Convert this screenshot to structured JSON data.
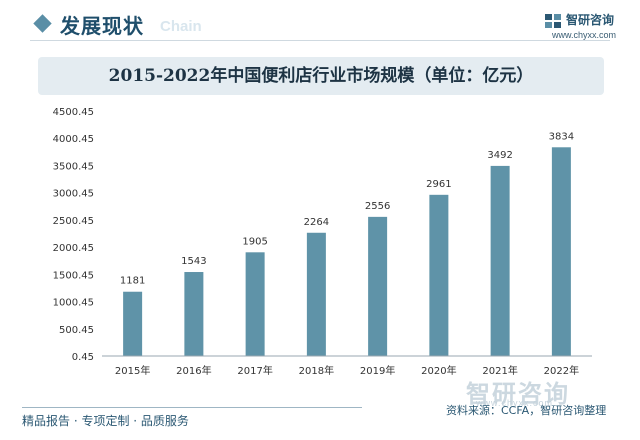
{
  "header": {
    "section_title": "发展现状",
    "section_ghost": "Chain",
    "logo_name": "智研咨询",
    "logo_url": "www.chyxx.com"
  },
  "chart_data": {
    "type": "bar",
    "title": "2015-2022年中国便利店行业市场规模（单位：亿元）",
    "categories": [
      "2015年",
      "2016年",
      "2017年",
      "2018年",
      "2019年",
      "2020年",
      "2021年",
      "2022年"
    ],
    "values": [
      1181,
      1543,
      1905,
      2264,
      2556,
      2961,
      3492,
      3834
    ],
    "data_labels": [
      "1181",
      "1543",
      "1905",
      "2264",
      "2556",
      "2961",
      "3492",
      "3834"
    ],
    "yticks": [
      "0.45",
      "500.45",
      "1000.45",
      "1500.45",
      "2000.45",
      "2500.45",
      "3000.45",
      "3500.45",
      "4000.45",
      "4500.45"
    ],
    "ylim": [
      0.45,
      4500.45
    ],
    "grid": false,
    "bar_color": "#5f93a8"
  },
  "footer": {
    "left": "精品报告 · 专项定制 · 品质服务",
    "source": "资料来源：CCFA，智研咨询整理",
    "watermark": "智研咨询",
    "watermark_url": "www.chyxx.com"
  }
}
